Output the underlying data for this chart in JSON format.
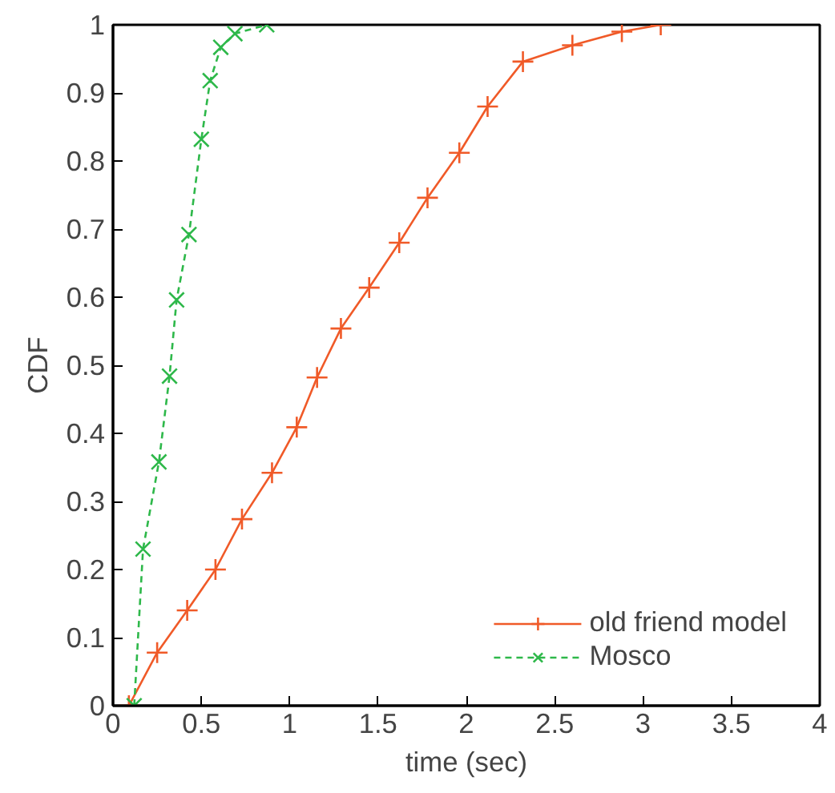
{
  "chart_data": {
    "type": "line",
    "xlabel": "time (sec)",
    "ylabel": "CDF",
    "xlim": [
      0,
      4
    ],
    "ylim": [
      0,
      1
    ],
    "xticks": [
      0,
      {
        "value": 0.5,
        "label": "0.5"
      },
      1,
      {
        "value": 1.5,
        "label": "1.5"
      },
      2,
      {
        "value": 2.5,
        "label": "2.5"
      },
      3,
      {
        "value": 3.5,
        "label": "3.5"
      },
      4
    ],
    "yticks": [
      0,
      {
        "value": 0.1,
        "label": "0.1"
      },
      {
        "value": 0.2,
        "label": "0.2"
      },
      {
        "value": 0.3,
        "label": "0.3"
      },
      {
        "value": 0.4,
        "label": "0.4"
      },
      {
        "value": 0.5,
        "label": "0.5"
      },
      {
        "value": 0.6,
        "label": "0.6"
      },
      {
        "value": 0.7,
        "label": "0.7"
      },
      {
        "value": 0.8,
        "label": "0.8"
      },
      {
        "value": 0.9,
        "label": "0.9"
      },
      1
    ],
    "grid": false,
    "legend": "bottom right",
    "series": [
      {
        "name": "old friend model",
        "color": "#f05a28",
        "marker": "cross",
        "line_style": "solid",
        "x": [
          0.09,
          0.25,
          0.42,
          0.58,
          0.73,
          0.9,
          1.04,
          1.155,
          1.29,
          1.45,
          1.62,
          1.78,
          1.96,
          2.12,
          2.32,
          2.6,
          2.88,
          3.1
        ],
        "values": [
          0,
          0.078,
          0.14,
          0.2,
          0.274,
          0.342,
          0.409,
          0.482,
          0.554,
          0.614,
          0.68,
          0.746,
          0.812,
          0.88,
          0.946,
          0.97,
          0.99,
          1.0
        ]
      },
      {
        "name": "Mosco",
        "color": "#2eb84a",
        "marker": "x",
        "line_style": "dashed",
        "x": [
          0.12,
          0.17,
          0.26,
          0.32,
          0.36,
          0.43,
          0.5,
          0.55,
          0.61,
          0.69,
          0.87
        ],
        "values": [
          0,
          0.23,
          0.358,
          0.484,
          0.596,
          0.692,
          0.832,
          0.918,
          0.967,
          0.987,
          1.0
        ]
      }
    ]
  }
}
